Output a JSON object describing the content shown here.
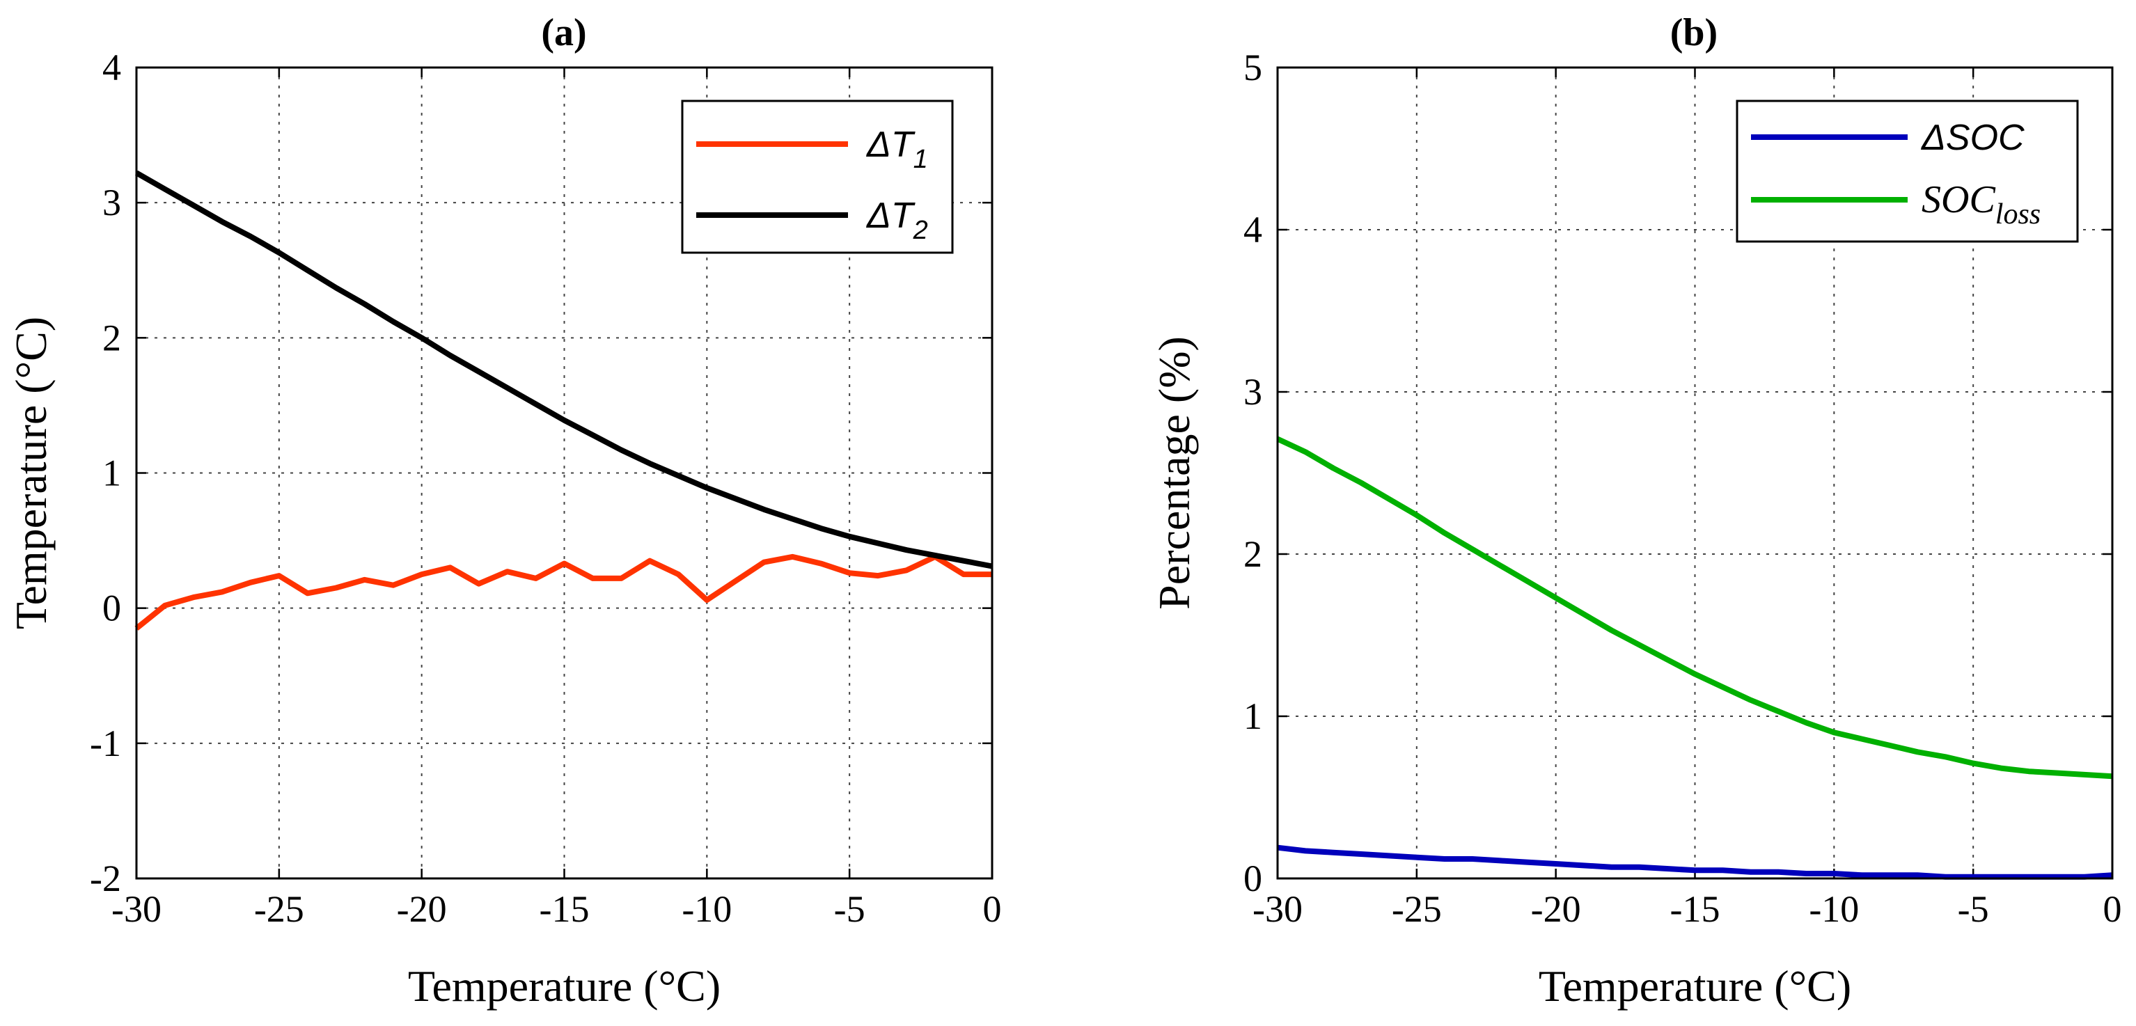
{
  "chart_data": [
    {
      "type": "line",
      "title": "(a)",
      "xlabel": "Temperature (°C)",
      "ylabel": "Temperature (°C)",
      "xlim": [
        -30,
        0
      ],
      "ylim": [
        -2,
        4
      ],
      "xticks": [
        -30,
        -25,
        -20,
        -15,
        -10,
        -5,
        0
      ],
      "yticks": [
        -2,
        -1,
        0,
        1,
        2,
        3,
        4
      ],
      "xtick_labels": [
        "-30",
        "-25",
        "-20",
        "-15",
        "-10",
        "-5",
        "0"
      ],
      "ytick_labels": [
        "-2",
        "-1",
        "0",
        "1",
        "2",
        "3",
        "4"
      ],
      "grid": true,
      "legend_position": "top-right",
      "x": [
        -30,
        -29,
        -28,
        -27,
        -26,
        -25,
        -24,
        -23,
        -22,
        -21,
        -20,
        -19,
        -18,
        -17,
        -16,
        -15,
        -14,
        -13,
        -12,
        -11,
        -10,
        -9,
        -8,
        -7,
        -6,
        -5,
        -4,
        -3,
        -2,
        -1,
        0
      ],
      "series": [
        {
          "name": "ΔT",
          "subscript": "1",
          "color": "#ff3300",
          "values": [
            -0.15,
            0.02,
            0.08,
            0.12,
            0.19,
            0.24,
            0.11,
            0.15,
            0.21,
            0.17,
            0.25,
            0.3,
            0.18,
            0.27,
            0.22,
            0.33,
            0.22,
            0.22,
            0.35,
            0.25,
            0.06,
            0.2,
            0.34,
            0.38,
            0.33,
            0.26,
            0.24,
            0.28,
            0.38,
            0.25,
            0.25
          ]
        },
        {
          "name": "ΔT",
          "subscript": "2",
          "color": "#000000",
          "values": [
            3.22,
            3.1,
            2.98,
            2.86,
            2.75,
            2.63,
            2.5,
            2.37,
            2.25,
            2.12,
            2.0,
            1.87,
            1.75,
            1.63,
            1.51,
            1.39,
            1.28,
            1.17,
            1.07,
            0.98,
            0.89,
            0.81,
            0.73,
            0.66,
            0.59,
            0.53,
            0.48,
            0.43,
            0.39,
            0.35,
            0.31
          ]
        }
      ]
    },
    {
      "type": "line",
      "title": "(b)",
      "xlabel": "Temperature (°C)",
      "ylabel": "Percentage (%)",
      "xlim": [
        -30,
        0
      ],
      "ylim": [
        0,
        5
      ],
      "xticks": [
        -30,
        -25,
        -20,
        -15,
        -10,
        -5,
        0
      ],
      "yticks": [
        0,
        1,
        2,
        3,
        4,
        5
      ],
      "xtick_labels": [
        "-30",
        "-25",
        "-20",
        "-15",
        "-10",
        "-5",
        "0"
      ],
      "ytick_labels": [
        "0",
        "1",
        "2",
        "3",
        "4",
        "5"
      ],
      "grid": true,
      "legend_position": "top-right",
      "x": [
        -30,
        -29,
        -28,
        -27,
        -26,
        -25,
        -24,
        -23,
        -22,
        -21,
        -20,
        -19,
        -18,
        -17,
        -16,
        -15,
        -14,
        -13,
        -12,
        -11,
        -10,
        -9,
        -8,
        -7,
        -6,
        -5,
        -4,
        -3,
        -2,
        -1,
        0
      ],
      "series": [
        {
          "name": "ΔSOC",
          "subscript": "",
          "color": "#0000bb",
          "values": [
            0.19,
            0.17,
            0.16,
            0.15,
            0.14,
            0.13,
            0.12,
            0.12,
            0.11,
            0.1,
            0.09,
            0.08,
            0.07,
            0.07,
            0.06,
            0.05,
            0.05,
            0.04,
            0.04,
            0.03,
            0.03,
            0.02,
            0.02,
            0.02,
            0.01,
            0.01,
            0.01,
            0.01,
            0.01,
            0.01,
            0.02
          ]
        },
        {
          "name": "SOC",
          "subscript": "loss",
          "color": "#00b000",
          "values": [
            2.71,
            2.63,
            2.53,
            2.44,
            2.34,
            2.24,
            2.13,
            2.03,
            1.93,
            1.83,
            1.73,
            1.63,
            1.53,
            1.44,
            1.35,
            1.26,
            1.18,
            1.1,
            1.03,
            0.96,
            0.9,
            0.86,
            0.82,
            0.78,
            0.75,
            0.71,
            0.68,
            0.66,
            0.65,
            0.64,
            0.63
          ]
        }
      ]
    }
  ]
}
